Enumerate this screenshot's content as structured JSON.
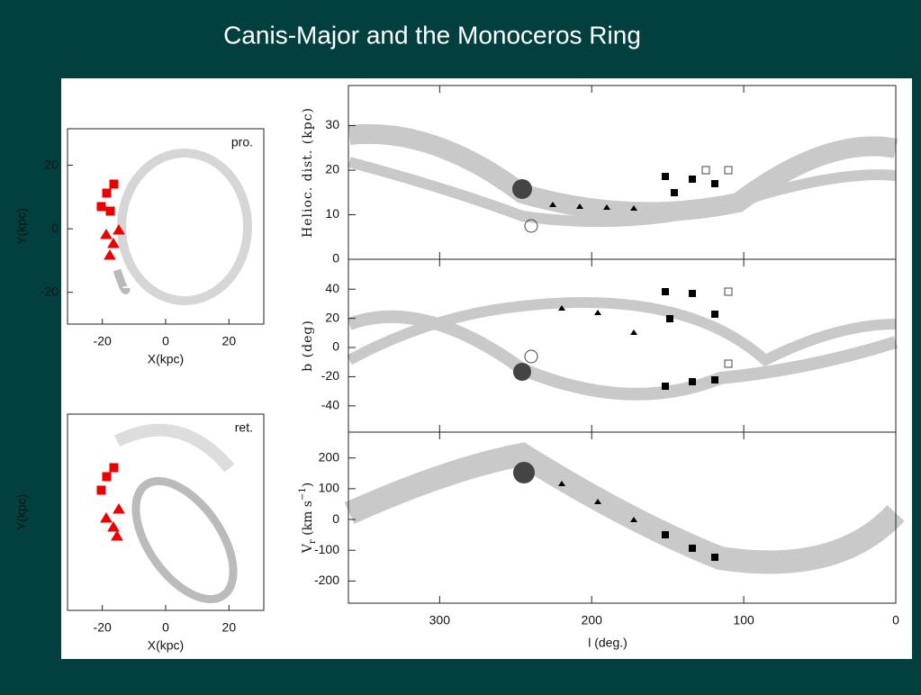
{
  "title": "Canis-Major and the Monoceros Ring",
  "left_panels": [
    {
      "label": "pro.",
      "x_label": "X(kpc)",
      "y_label": "Y(kpc)",
      "xlim": [
        -31,
        31
      ],
      "ylim": [
        -30,
        31.5
      ],
      "xticks": [
        -20,
        0,
        20
      ],
      "yticks": [
        20,
        0,
        -20
      ]
    },
    {
      "label": "ret.",
      "x_label": "X(kpc)",
      "y_label": "Y(kpc)",
      "xlim": [
        -31,
        31
      ],
      "ylim": [
        -31,
        31
      ],
      "xticks": [
        -20,
        0,
        20
      ]
    }
  ],
  "right_panels": [
    {
      "y_label": "Helioc. dist. (kpc)",
      "ylim": [
        0,
        39
      ],
      "yticks": [
        0,
        10,
        20,
        30
      ]
    },
    {
      "y_label": "b (deg)",
      "ylim": [
        -58,
        60.5
      ],
      "yticks": [
        -40,
        -20,
        0,
        20,
        40
      ]
    },
    {
      "y_label": {
        "main": "V",
        "sub": "r",
        "unit": " (km s",
        "sup": "−1",
        "close": ")"
      },
      "ylim": [
        -272,
        284
      ],
      "yticks": [
        -200,
        -100,
        0,
        100,
        200
      ]
    }
  ],
  "x_label": "l (deg.)",
  "xlim": [
    360,
    0
  ],
  "xticks": [
    300,
    200,
    100,
    0
  ]
}
